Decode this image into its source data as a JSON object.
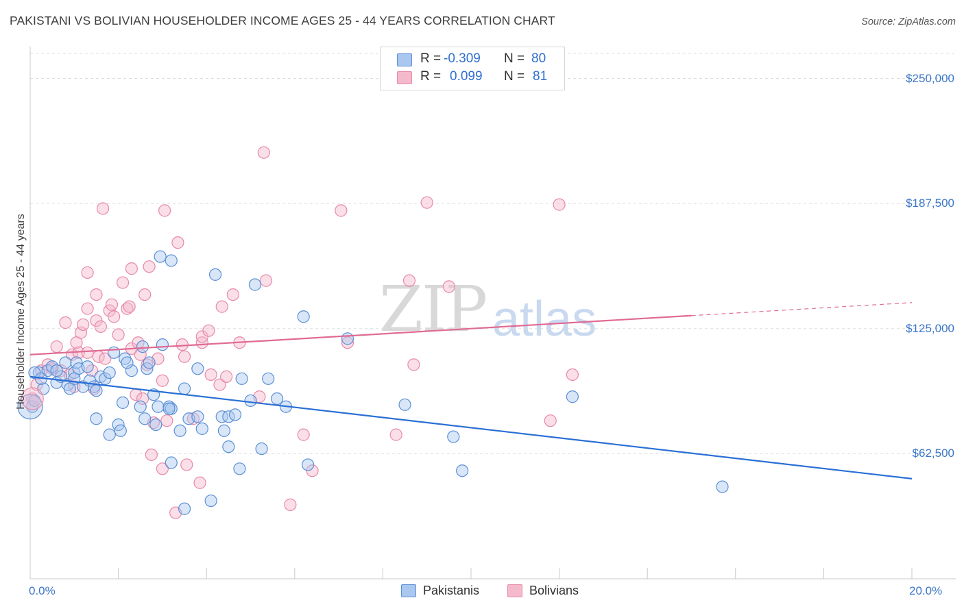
{
  "title": "PAKISTANI VS BOLIVIAN HOUSEHOLDER INCOME AGES 25 - 44 YEARS CORRELATION CHART",
  "source": "Source: ZipAtlas.com",
  "watermark": {
    "zip": "ZIP",
    "atlas": "atlas"
  },
  "legend": {
    "rows": [
      {
        "r_label": "R =",
        "r_value": "-0.309",
        "n_label": "N =",
        "n_value": "80"
      },
      {
        "r_label": "R =",
        "r_value": "0.099",
        "n_label": "N =",
        "n_value": "81"
      }
    ]
  },
  "bottom_legend": [
    "Pakistanis",
    "Bolivians"
  ],
  "colors": {
    "pakistani_fill": "#a9c7ef",
    "pakistani_edge": "#5b8fd6",
    "pakistani_line": "#2a6fd6",
    "bolivian_fill": "#f5b9cc",
    "bolivian_edge": "#e889a8",
    "bolivian_line": "#e06b93",
    "grid": "#dddddd",
    "axis_text": "#3b77c9"
  },
  "chart_data": {
    "type": "scatter",
    "title": "PAKISTANI VS BOLIVIAN HOUSEHOLDER INCOME AGES 25 - 44 YEARS CORRELATION CHART",
    "xlabel": "",
    "ylabel": "Householder Income Ages 25 - 44 years",
    "xlim": [
      0,
      20
    ],
    "ylim": [
      0,
      262500
    ],
    "x_tick_labels": [
      "0.0%",
      "20.0%"
    ],
    "y_ticks": [
      62500,
      125000,
      187500,
      250000
    ],
    "y_tick_labels": [
      "$62,500",
      "$125,000",
      "$187,500",
      "$250,000"
    ],
    "grid": true,
    "legend_position": "top-center",
    "series": [
      {
        "name": "Pakistanis",
        "r": -0.309,
        "n": 80,
        "trend": {
          "x": [
            0,
            20
          ],
          "y": [
            101000,
            50000
          ],
          "dashed_from": null
        },
        "points": [
          [
            0.05,
            86000
          ],
          [
            0.1,
            89000
          ],
          [
            0.2,
            103000
          ],
          [
            0.3,
            95000
          ],
          [
            0.4,
            104000
          ],
          [
            0.5,
            106000
          ],
          [
            0.6,
            98000
          ],
          [
            0.7,
            101000
          ],
          [
            0.8,
            108000
          ],
          [
            0.85,
            97000
          ],
          [
            0.9,
            95000
          ],
          [
            1.0,
            103000
          ],
          [
            1.05,
            108000
          ],
          [
            1.1,
            105000
          ],
          [
            1.2,
            96000
          ],
          [
            1.3,
            106000
          ],
          [
            1.35,
            99000
          ],
          [
            1.45,
            96000
          ],
          [
            1.5,
            94000
          ],
          [
            1.6,
            101000
          ],
          [
            1.7,
            100000
          ],
          [
            1.8,
            103000
          ],
          [
            1.5,
            80000
          ],
          [
            1.8,
            72000
          ],
          [
            2.0,
            77000
          ],
          [
            2.05,
            74000
          ],
          [
            2.1,
            88000
          ],
          [
            2.15,
            110000
          ],
          [
            2.3,
            104000
          ],
          [
            2.5,
            86000
          ],
          [
            2.6,
            80000
          ],
          [
            2.55,
            116000
          ],
          [
            2.65,
            105000
          ],
          [
            2.7,
            108000
          ],
          [
            2.8,
            92000
          ],
          [
            2.85,
            77000
          ],
          [
            2.9,
            86000
          ],
          [
            2.95,
            161000
          ],
          [
            3.0,
            117000
          ],
          [
            3.2,
            159000
          ],
          [
            3.15,
            86000
          ],
          [
            3.2,
            85000
          ],
          [
            3.15,
            85000
          ],
          [
            3.2,
            58000
          ],
          [
            3.4,
            74000
          ],
          [
            3.5,
            95000
          ],
          [
            3.5,
            35000
          ],
          [
            3.6,
            80000
          ],
          [
            3.8,
            81000
          ],
          [
            3.8,
            105000
          ],
          [
            3.9,
            75000
          ],
          [
            4.1,
            39000
          ],
          [
            4.2,
            152000
          ],
          [
            4.35,
            81000
          ],
          [
            4.4,
            74000
          ],
          [
            4.5,
            66000
          ],
          [
            4.5,
            81000
          ],
          [
            4.65,
            82000
          ],
          [
            4.75,
            55000
          ],
          [
            4.8,
            100000
          ],
          [
            5.0,
            89000
          ],
          [
            5.1,
            147000
          ],
          [
            5.25,
            65000
          ],
          [
            5.4,
            100000
          ],
          [
            5.6,
            90000
          ],
          [
            5.8,
            86000
          ],
          [
            6.2,
            131000
          ],
          [
            6.3,
            57000
          ],
          [
            7.2,
            120000
          ],
          [
            8.5,
            87000
          ],
          [
            9.6,
            71000
          ],
          [
            9.8,
            54000
          ],
          [
            12.3,
            91000
          ],
          [
            15.7,
            46000
          ],
          [
            0.1,
            103000
          ],
          [
            0.25,
            100000
          ],
          [
            0.6,
            104000
          ],
          [
            1.0,
            100000
          ],
          [
            1.9,
            113000
          ],
          [
            2.2,
            108000
          ]
        ]
      },
      {
        "name": "Bolivians",
        "r": 0.099,
        "n": 81,
        "trend": {
          "x": [
            0,
            20
          ],
          "y": [
            112000,
            138000
          ],
          "dashed_from": 15
        },
        "points": [
          [
            0.05,
            90000
          ],
          [
            0.15,
            97000
          ],
          [
            0.25,
            104000
          ],
          [
            0.4,
            107000
          ],
          [
            0.5,
            105000
          ],
          [
            0.6,
            116000
          ],
          [
            0.7,
            104000
          ],
          [
            0.8,
            128000
          ],
          [
            0.9,
            102000
          ],
          [
            0.95,
            112000
          ],
          [
            1.0,
            96000
          ],
          [
            1.05,
            118000
          ],
          [
            1.1,
            113000
          ],
          [
            1.15,
            123000
          ],
          [
            1.2,
            127000
          ],
          [
            1.3,
            113000
          ],
          [
            1.3,
            153000
          ],
          [
            1.3,
            135000
          ],
          [
            1.4,
            104000
          ],
          [
            1.45,
            95000
          ],
          [
            1.5,
            129000
          ],
          [
            1.5,
            142000
          ],
          [
            1.55,
            111000
          ],
          [
            1.6,
            126000
          ],
          [
            1.65,
            185000
          ],
          [
            1.7,
            110000
          ],
          [
            1.8,
            134000
          ],
          [
            1.85,
            137000
          ],
          [
            1.9,
            131000
          ],
          [
            2.0,
            122000
          ],
          [
            2.1,
            148000
          ],
          [
            2.2,
            135000
          ],
          [
            2.3,
            115000
          ],
          [
            2.25,
            136000
          ],
          [
            2.3,
            155000
          ],
          [
            2.4,
            92000
          ],
          [
            2.45,
            118000
          ],
          [
            2.5,
            112000
          ],
          [
            2.55,
            90000
          ],
          [
            2.6,
            142000
          ],
          [
            2.65,
            107000
          ],
          [
            2.7,
            156000
          ],
          [
            2.75,
            62000
          ],
          [
            2.8,
            78000
          ],
          [
            2.9,
            110000
          ],
          [
            3.0,
            99000
          ],
          [
            3.0,
            55000
          ],
          [
            3.05,
            184000
          ],
          [
            3.1,
            79000
          ],
          [
            3.3,
            33000
          ],
          [
            3.35,
            168000
          ],
          [
            3.45,
            117000
          ],
          [
            3.5,
            111000
          ],
          [
            3.55,
            57000
          ],
          [
            3.7,
            80000
          ],
          [
            3.85,
            48000
          ],
          [
            3.9,
            118000
          ],
          [
            3.9,
            121000
          ],
          [
            4.05,
            124000
          ],
          [
            4.1,
            102000
          ],
          [
            4.3,
            97000
          ],
          [
            4.35,
            136000
          ],
          [
            4.45,
            101000
          ],
          [
            4.6,
            142000
          ],
          [
            4.75,
            118000
          ],
          [
            5.2,
            91000
          ],
          [
            5.3,
            213000
          ],
          [
            5.35,
            149000
          ],
          [
            5.9,
            37000
          ],
          [
            6.2,
            72000
          ],
          [
            6.4,
            54000
          ],
          [
            7.05,
            184000
          ],
          [
            7.2,
            118000
          ],
          [
            8.3,
            72000
          ],
          [
            8.6,
            149000
          ],
          [
            8.7,
            107000
          ],
          [
            9.0,
            188000
          ],
          [
            9.5,
            146000
          ],
          [
            11.8,
            79000
          ],
          [
            12.0,
            187000
          ],
          [
            12.3,
            102000
          ]
        ]
      }
    ]
  }
}
